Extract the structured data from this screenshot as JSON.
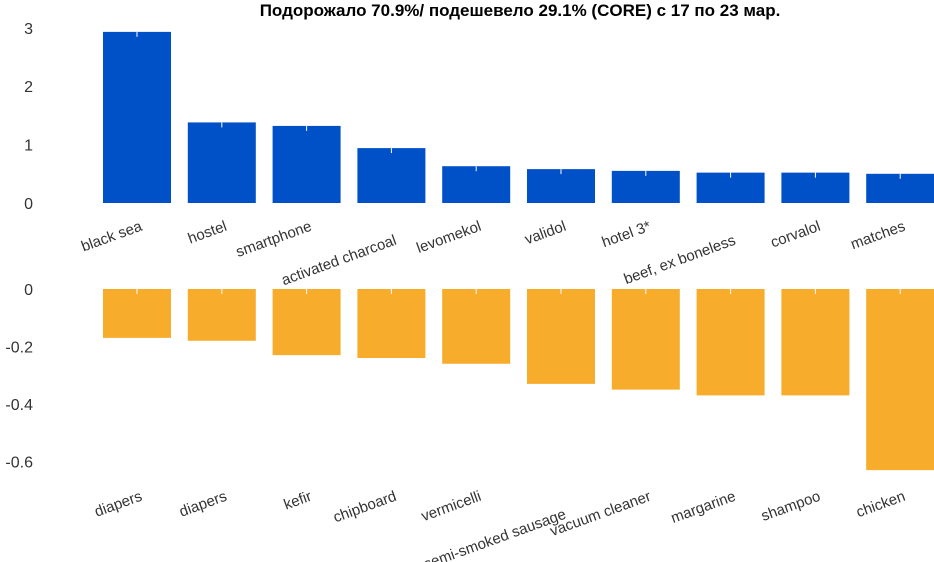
{
  "chart_title": "Подорожало 70.9%/ подешевело 29.1% (CORE)  с 17 по 23 мар.",
  "chart_data": [
    {
      "type": "bar",
      "categories": [
        "black sea",
        "hostel",
        "smartphone",
        "activated charcoal",
        "levomekol",
        "validol",
        "hotel 3*",
        "beef, ex boneless",
        "corvalol",
        "matches"
      ],
      "values": [
        2.93,
        1.38,
        1.32,
        0.94,
        0.63,
        0.58,
        0.55,
        0.52,
        0.52,
        0.5
      ],
      "ylim": [
        0,
        3
      ],
      "yticks": [
        "0",
        "1",
        "2",
        "3"
      ],
      "color": "#0050c8"
    },
    {
      "type": "bar",
      "categories": [
        "diapers",
        "diapers",
        "kefir",
        "chipboard",
        "vermicelli",
        "semi-smoked sausage",
        "vacuum cleaner",
        "margarine",
        "shampoo",
        "chicken"
      ],
      "values": [
        -0.17,
        -0.18,
        -0.23,
        -0.24,
        -0.26,
        -0.33,
        -0.35,
        -0.37,
        -0.37,
        -0.63
      ],
      "ylim": [
        -0.63,
        0
      ],
      "yticks": [
        "0",
        "-0.2",
        "-0.4",
        "-0.6"
      ],
      "color": "#f7ac2c"
    }
  ]
}
